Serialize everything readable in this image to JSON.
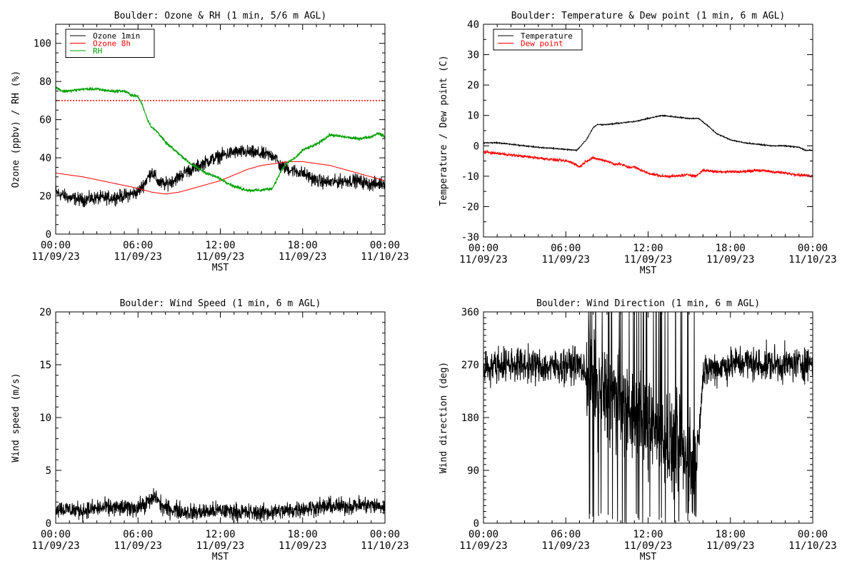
{
  "x_axis": {
    "label": "MST",
    "ticks": [
      {
        "time": "00:00",
        "date": "11/09/23"
      },
      {
        "time": "06:00",
        "date": "11/09/23"
      },
      {
        "time": "12:00",
        "date": "11/09/23"
      },
      {
        "time": "18:00",
        "date": "11/09/23"
      },
      {
        "time": "00:00",
        "date": "11/10/23"
      }
    ]
  },
  "chart_data": [
    {
      "id": "ozone",
      "type": "line",
      "title": "Boulder: Ozone & RH (1 min, 5/6 m AGL)",
      "xlabel": "MST",
      "ylabel": "Ozone (ppbv) / RH (%)",
      "xlim": [
        0,
        24
      ],
      "ylim": [
        0,
        110
      ],
      "yticks": [
        0,
        20,
        40,
        60,
        80,
        100
      ],
      "ymtick": 5,
      "legend": "top-left",
      "reference_line": {
        "y": 70,
        "color": "#ff0000",
        "style": "dotted"
      },
      "series": [
        {
          "name": "Ozone 1min",
          "color": "#000000",
          "noise": 3.0,
          "x": [
            0,
            1,
            2,
            3,
            4,
            5,
            6,
            6.5,
            7,
            7.5,
            8,
            8.5,
            9,
            9.5,
            10,
            10.5,
            11,
            12,
            13,
            14,
            15,
            16,
            16.3,
            17,
            18,
            19,
            20,
            21,
            22,
            23,
            24
          ],
          "y": [
            22,
            19,
            18,
            19,
            19,
            20,
            22,
            27,
            33,
            27,
            26,
            28,
            30,
            33,
            34,
            36,
            38,
            41,
            43,
            43,
            42,
            41,
            36,
            34,
            32,
            28,
            27,
            28,
            28,
            26,
            27
          ]
        },
        {
          "name": "Ozone 8h",
          "color": "#ff0000",
          "noise": 0,
          "x": [
            0,
            2,
            4,
            6,
            7,
            8,
            9,
            10,
            11,
            12,
            13,
            14,
            15,
            16,
            17,
            18,
            19,
            20,
            21,
            22,
            23,
            24
          ],
          "y": [
            32,
            30,
            27,
            24,
            22,
            21,
            22,
            24,
            26,
            28,
            31,
            34,
            36,
            37,
            38,
            38,
            37,
            36,
            34,
            32,
            30,
            28
          ]
        },
        {
          "name": "RH",
          "color": "#00a000",
          "noise": 0.7,
          "x": [
            0,
            0.5,
            1,
            2,
            3,
            4,
            5,
            5.5,
            6,
            6.3,
            6.7,
            7,
            7.5,
            8,
            8.5,
            9,
            9.5,
            10,
            11,
            12,
            12.5,
            13,
            14,
            15,
            15.8,
            16,
            16.5,
            17,
            17.5,
            18,
            19,
            20,
            21,
            22,
            23,
            23.5,
            24
          ],
          "y": [
            77,
            75,
            75,
            76,
            76,
            75,
            75,
            73,
            72,
            68,
            60,
            56,
            53,
            48,
            45,
            42,
            39,
            36,
            32,
            29,
            27,
            25,
            23,
            23,
            24,
            27,
            34,
            38,
            40,
            44,
            47,
            52,
            51,
            50,
            51,
            53,
            51
          ]
        }
      ]
    },
    {
      "id": "temperature",
      "type": "line",
      "title": "Boulder: Temperature & Dew point (1 min, 6 m AGL)",
      "xlabel": "MST",
      "ylabel": "Temperature / Dew point (C)",
      "xlim": [
        0,
        24
      ],
      "ylim": [
        -30,
        40
      ],
      "yticks": [
        -30,
        -20,
        -10,
        0,
        10,
        20,
        30,
        40
      ],
      "ymtick": 5,
      "legend": "top-left",
      "series": [
        {
          "name": "Temperature",
          "color": "#000000",
          "noise": 0.15,
          "x": [
            0,
            1,
            2,
            3,
            4,
            5,
            6,
            6.8,
            7.5,
            8,
            8.3,
            9,
            10,
            11,
            12,
            13,
            14,
            15,
            15.7,
            16.5,
            17,
            18,
            19,
            20,
            21,
            22,
            23,
            23.5,
            24
          ],
          "y": [
            1,
            1,
            0.5,
            0,
            -0.5,
            -0.8,
            -1.2,
            -1.5,
            2,
            6,
            7,
            7,
            7.5,
            8,
            9,
            10,
            9.5,
            9,
            9,
            6,
            4,
            2,
            1,
            0.5,
            0,
            0,
            -0.5,
            -1.5,
            -1.5
          ]
        },
        {
          "name": "Dew point",
          "color": "#ff0000",
          "noise": 0.4,
          "x": [
            0,
            1,
            2,
            3,
            4,
            5,
            6,
            6.5,
            7,
            7.5,
            8,
            8.5,
            9,
            9.5,
            10,
            10.5,
            11,
            12,
            13,
            14,
            15,
            15.5,
            16,
            17,
            18,
            19,
            20,
            21,
            22,
            23,
            24
          ],
          "y": [
            -2,
            -2.5,
            -3,
            -3.5,
            -4,
            -4.5,
            -5,
            -5.5,
            -7,
            -5,
            -4,
            -4.5,
            -5,
            -6,
            -6,
            -7,
            -7,
            -9,
            -10,
            -10,
            -9.5,
            -10,
            -8,
            -8.5,
            -8.5,
            -8.5,
            -8,
            -8.5,
            -9,
            -9.5,
            -10
          ]
        }
      ]
    },
    {
      "id": "windspeed",
      "type": "line",
      "title": "Boulder: Wind Speed (1 min, 6 m AGL)",
      "xlabel": "MST",
      "ylabel": "Wind speed (m/s)",
      "xlim": [
        0,
        24
      ],
      "ylim": [
        0,
        20
      ],
      "yticks": [
        0,
        5,
        10,
        15,
        20
      ],
      "ymtick": 1,
      "series": [
        {
          "name": "",
          "color": "#000000",
          "noise": 0.7,
          "x": [
            0,
            1,
            2,
            3,
            4,
            5,
            6,
            6.5,
            7,
            7.3,
            7.6,
            8,
            9,
            10,
            11,
            12,
            13,
            14,
            15,
            16,
            17,
            18,
            19,
            20,
            21,
            22,
            23,
            24
          ],
          "y": [
            1.4,
            1.3,
            1.2,
            1.4,
            1.5,
            1.4,
            1.5,
            1.8,
            2.2,
            2.6,
            1.8,
            1.4,
            1.2,
            1.0,
            1.1,
            1.2,
            1.1,
            1.0,
            1.0,
            1.1,
            1.2,
            1.4,
            1.5,
            1.6,
            1.6,
            1.7,
            1.7,
            1.5
          ]
        }
      ]
    },
    {
      "id": "winddir",
      "type": "line",
      "title": "Boulder: Wind Direction (1 min, 6 m AGL)",
      "xlabel": "MST",
      "ylabel": "Wind direction (deg)",
      "xlim": [
        0,
        24
      ],
      "ylim": [
        0,
        360
      ],
      "yticks": [
        0,
        90,
        180,
        270,
        360
      ],
      "ymtick": 10,
      "series": [
        {
          "name": "",
          "color": "#000000",
          "noise": 25,
          "chaotic": [
            7.5,
            15.5
          ],
          "x": [
            0,
            1,
            2,
            3,
            4,
            5,
            6,
            7,
            7.5,
            15.5,
            16,
            16.5,
            17,
            18,
            19,
            20,
            21,
            22,
            23,
            24
          ],
          "y": [
            265,
            270,
            272,
            270,
            268,
            265,
            270,
            270,
            250,
            100,
            250,
            265,
            265,
            270,
            275,
            270,
            272,
            270,
            272,
            275
          ]
        }
      ]
    }
  ]
}
